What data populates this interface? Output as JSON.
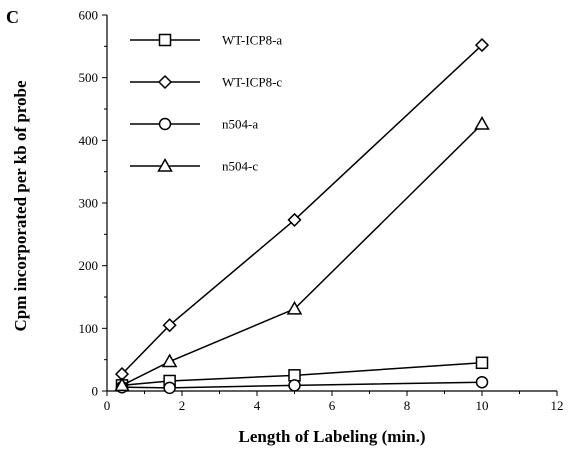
{
  "panel_label": "C",
  "chart_data": {
    "type": "line",
    "xlabel": "Length of Labeling (min.)",
    "ylabel": "Cpm incorporated per kb of probe",
    "xlim": [
      0,
      12
    ],
    "ylim": [
      0,
      600
    ],
    "xticks": [
      "0",
      "2",
      "4",
      "6",
      "8",
      "10",
      "12"
    ],
    "yticks": [
      "0",
      "100",
      "200",
      "300",
      "400",
      "500",
      "600"
    ],
    "grid": false,
    "legend_position": "top-left",
    "series": [
      {
        "name": "WT-ICP8-a",
        "marker": "square",
        "x": [
          0.4,
          1.67,
          5,
          10
        ],
        "y": [
          9,
          16,
          25,
          45
        ]
      },
      {
        "name": "WT-ICP8-c",
        "marker": "diamond",
        "x": [
          0.4,
          1.67,
          5,
          10
        ],
        "y": [
          27,
          105,
          273,
          552
        ]
      },
      {
        "name": "n504-a",
        "marker": "circle",
        "x": [
          0.4,
          1.67,
          5,
          10
        ],
        "y": [
          6,
          5,
          9,
          14
        ]
      },
      {
        "name": "n504-c",
        "marker": "triangle",
        "x": [
          0.4,
          1.67,
          5,
          10
        ],
        "y": [
          9,
          47,
          131,
          426
        ]
      }
    ]
  }
}
